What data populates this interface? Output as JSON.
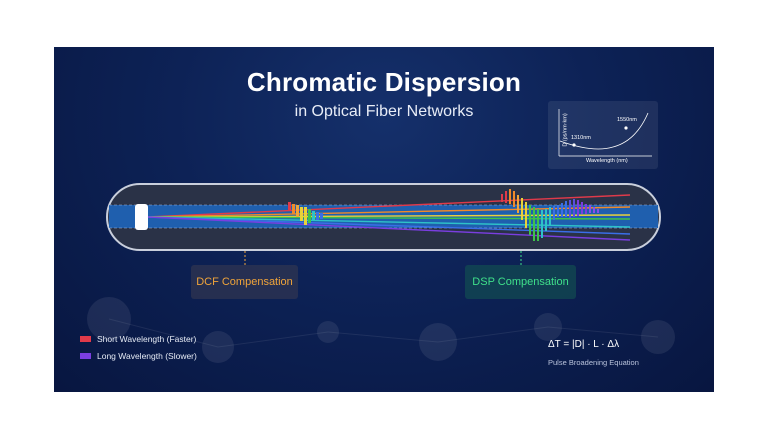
{
  "title": "Chromatic Dispersion",
  "subtitle": "in Optical Fiber Networks",
  "inset_chart": {
    "ylabel": "D (ps/nm·km)",
    "xlabel": "Wavelength (nm)",
    "points": [
      {
        "label": "1310nm"
      },
      {
        "label": "1550nm"
      }
    ]
  },
  "compensation": {
    "dcf_label": "DCF Compensation",
    "dsp_label": "DSP Compensation"
  },
  "legend": [
    {
      "label": "Short Wavelength (Faster)",
      "color": "#e03a4a"
    },
    {
      "label": "Long Wavelength (Slower)",
      "color": "#7a3ee0"
    }
  ],
  "equation": {
    "formula": "ΔT = |D| · L · Δλ",
    "caption": "Pulse Broadening Equation"
  },
  "colors": {
    "background": "#0d2256",
    "fiber_core": "#1f5fae",
    "dcf_accent": "#f0a43a",
    "dsp_accent": "#3fe08a"
  }
}
